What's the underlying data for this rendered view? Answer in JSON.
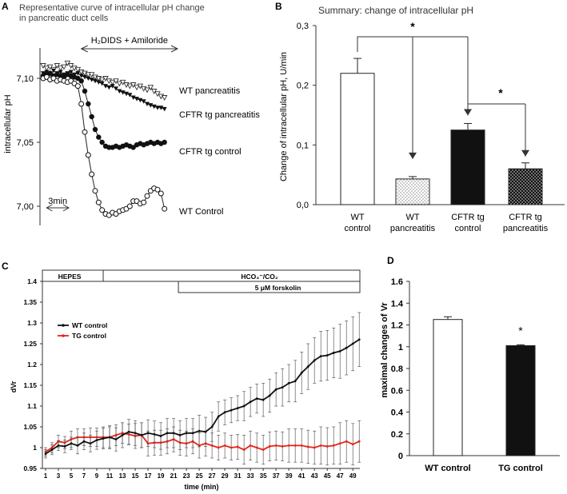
{
  "panel_labels": {
    "a": "A",
    "b": "B",
    "c": "C",
    "d": "D"
  },
  "chart_data": [
    {
      "panel": "A",
      "type": "line",
      "title": "Representative curve of intracellular pH change",
      "subtitle": "in pancreatic duct cells",
      "ylabel": "intracellular pH",
      "ylim": [
        6.985,
        7.125
      ],
      "yticks": [
        "7,10",
        "7,05",
        "7,00"
      ],
      "ytick_values": [
        7.1,
        7.05,
        7.0
      ],
      "treatment_label": "H₂DIDS + Amiloride",
      "time_scale_label": "3min",
      "xlim": [
        0,
        36
      ],
      "treatment_range": [
        11,
        36
      ],
      "scale_bar": [
        1,
        6
      ],
      "series": [
        {
          "name": "WT pancreatitis",
          "marker": "triangle-open",
          "x": [
            0,
            1,
            2,
            3,
            4,
            5,
            6,
            7,
            8,
            9,
            10,
            11,
            12,
            13,
            14,
            15,
            16,
            17,
            18,
            19,
            20,
            21,
            22,
            23,
            24,
            25,
            26,
            27,
            28,
            29,
            30,
            31,
            32,
            33,
            34,
            35
          ],
          "y": [
            7.11,
            7.108,
            7.109,
            7.107,
            7.11,
            7.108,
            7.109,
            7.112,
            7.11,
            7.108,
            7.107,
            7.105,
            7.104,
            7.103,
            7.103,
            7.101,
            7.1,
            7.099,
            7.1,
            7.098,
            7.097,
            7.098,
            7.096,
            7.097,
            7.095,
            7.094,
            7.095,
            7.093,
            7.094,
            7.092,
            7.091,
            7.093,
            7.09,
            7.088,
            7.086,
            7.085
          ]
        },
        {
          "name": "CFTR tg pancreatitis",
          "marker": "filled-small",
          "x": [
            0,
            1,
            2,
            3,
            4,
            5,
            6,
            7,
            8,
            9,
            10,
            11,
            12,
            13,
            14,
            15,
            16,
            17,
            18,
            19,
            20,
            21,
            22,
            23,
            24,
            25,
            26,
            27,
            28,
            29,
            30,
            31,
            32,
            33,
            34,
            35
          ],
          "y": [
            7.104,
            7.105,
            7.103,
            7.106,
            7.104,
            7.105,
            7.103,
            7.104,
            7.105,
            7.103,
            7.104,
            7.102,
            7.101,
            7.1,
            7.099,
            7.098,
            7.097,
            7.096,
            7.094,
            7.093,
            7.094,
            7.092,
            7.09,
            7.089,
            7.088,
            7.087,
            7.085,
            7.084,
            7.083,
            7.082,
            7.08,
            7.079,
            7.078,
            7.077,
            7.077,
            7.076
          ]
        },
        {
          "name": "CFTR tg control",
          "marker": "filled",
          "x": [
            0,
            1,
            2,
            3,
            4,
            5,
            6,
            7,
            8,
            9,
            10,
            11,
            12,
            13,
            14,
            15,
            16,
            17,
            18,
            19,
            20,
            21,
            22,
            23,
            24,
            25,
            26,
            27,
            28,
            29,
            30,
            31,
            32,
            33,
            34,
            35
          ],
          "y": [
            7.102,
            7.103,
            7.104,
            7.102,
            7.103,
            7.102,
            7.101,
            7.103,
            7.102,
            7.101,
            7.1,
            7.098,
            7.09,
            7.08,
            7.07,
            7.06,
            7.054,
            7.05,
            7.047,
            7.046,
            7.046,
            7.047,
            7.046,
            7.047,
            7.048,
            7.047,
            7.046,
            7.048,
            7.049,
            7.048,
            7.049,
            7.05,
            7.049,
            7.05,
            7.049,
            7.05
          ]
        },
        {
          "name": "WT Control",
          "marker": "circle-open",
          "x": [
            0,
            1,
            2,
            3,
            4,
            5,
            6,
            7,
            8,
            9,
            10,
            11,
            12,
            13,
            14,
            15,
            16,
            17,
            18,
            19,
            20,
            21,
            22,
            23,
            24,
            25,
            26,
            27,
            28,
            29,
            30,
            31,
            32,
            33,
            34,
            35
          ],
          "y": [
            7.1,
            7.101,
            7.099,
            7.1,
            7.098,
            7.099,
            7.098,
            7.097,
            7.098,
            7.096,
            7.094,
            7.08,
            7.058,
            7.04,
            7.025,
            7.012,
            7.003,
            6.997,
            6.994,
            6.993,
            6.995,
            6.994,
            6.996,
            6.997,
            6.998,
            7.0,
            7.004,
            7.004,
            7.002,
            7.003,
            7.008,
            7.012,
            7.014,
            7.013,
            7.01,
            6.998
          ]
        }
      ]
    },
    {
      "panel": "B",
      "type": "bar",
      "title": "Summary: change of intracellular pH",
      "ylabel": "Change of intracellular pH, U/min",
      "ylim": [
        0,
        0.3
      ],
      "yticks": [
        "0,0",
        "0,1",
        "0,2",
        "0,3"
      ],
      "categories": [
        "WT\ncontrol",
        "WT\npancreatitis",
        "CFTR tg\ncontrol",
        "CFTR tg\npancreatitis"
      ],
      "values": [
        0.22,
        0.043,
        0.125,
        0.06
      ],
      "errors": [
        0.025,
        0.004,
        0.011,
        0.01
      ],
      "fills": [
        "white",
        "dotted-light",
        "black",
        "dotted-dark"
      ],
      "significance": [
        "*",
        "*"
      ]
    },
    {
      "panel": "C",
      "type": "line",
      "ylabel": "dVr",
      "xlabel": "time (min)",
      "ylim": [
        0.95,
        1.4
      ],
      "yticks": [
        "0.95",
        "1",
        "1.05",
        "1.1",
        "1.15",
        "1.2",
        "1.25",
        "1.3",
        "1.35",
        "1.4"
      ],
      "ytick_values": [
        0.95,
        1.0,
        1.05,
        1.1,
        1.15,
        1.2,
        1.25,
        1.3,
        1.35,
        1.4
      ],
      "xticks": [
        "1",
        "3",
        "5",
        "7",
        "9",
        "11",
        "13",
        "15",
        "17",
        "19",
        "21",
        "23",
        "25",
        "27",
        "29",
        "31",
        "33",
        "35",
        "37",
        "39",
        "41",
        "43",
        "45",
        "47",
        "49"
      ],
      "xlim": [
        1,
        50
      ],
      "conditions": [
        {
          "label": "HEPES",
          "range": [
            1,
            10
          ]
        },
        {
          "label": "HCO₃⁻/CO₂",
          "range": [
            10,
            50
          ]
        },
        {
          "label": "5 μM forskolin",
          "range": [
            22,
            50
          ]
        }
      ],
      "series": [
        {
          "name": "WT control",
          "color": "#111111",
          "x": [
            1,
            2,
            3,
            4,
            5,
            6,
            7,
            8,
            9,
            10,
            11,
            12,
            13,
            14,
            15,
            16,
            17,
            18,
            19,
            20,
            21,
            22,
            23,
            24,
            25,
            26,
            27,
            28,
            29,
            30,
            31,
            32,
            33,
            34,
            35,
            36,
            37,
            38,
            39,
            40,
            41,
            42,
            43,
            44,
            45,
            46,
            47,
            48,
            49,
            50
          ],
          "y": [
            0.985,
            0.995,
            1.005,
            1.003,
            1.01,
            1.005,
            1.015,
            1.01,
            1.018,
            1.022,
            1.025,
            1.02,
            1.03,
            1.038,
            1.035,
            1.03,
            1.035,
            1.032,
            1.028,
            1.035,
            1.035,
            1.03,
            1.035,
            1.035,
            1.04,
            1.038,
            1.05,
            1.075,
            1.085,
            1.09,
            1.095,
            1.1,
            1.11,
            1.118,
            1.115,
            1.125,
            1.14,
            1.145,
            1.155,
            1.16,
            1.18,
            1.195,
            1.21,
            1.22,
            1.222,
            1.228,
            1.232,
            1.24,
            1.25,
            1.26
          ],
          "err": [
            0.01,
            0.012,
            0.012,
            0.015,
            0.015,
            0.02,
            0.02,
            0.02,
            0.022,
            0.025,
            0.028,
            0.028,
            0.03,
            0.03,
            0.03,
            0.03,
            0.032,
            0.032,
            0.032,
            0.035,
            0.035,
            0.035,
            0.035,
            0.035,
            0.038,
            0.035,
            0.035,
            0.035,
            0.03,
            0.03,
            0.03,
            0.035,
            0.035,
            0.035,
            0.04,
            0.04,
            0.04,
            0.045,
            0.045,
            0.05,
            0.05,
            0.055,
            0.055,
            0.06,
            0.06,
            0.06,
            0.065,
            0.065,
            0.065,
            0.065
          ]
        },
        {
          "name": "TG control",
          "color": "#e8231a",
          "x": [
            1,
            2,
            3,
            4,
            5,
            6,
            7,
            8,
            9,
            10,
            11,
            12,
            13,
            14,
            15,
            16,
            17,
            18,
            19,
            20,
            21,
            22,
            23,
            24,
            25,
            26,
            27,
            28,
            29,
            30,
            31,
            32,
            33,
            34,
            35,
            36,
            37,
            38,
            39,
            40,
            41,
            42,
            43,
            44,
            45,
            46,
            47,
            48,
            49,
            50
          ],
          "y": [
            0.99,
            1.0,
            1.015,
            1.012,
            1.02,
            1.025,
            1.025,
            1.025,
            1.025,
            1.025,
            1.025,
            1.03,
            1.035,
            1.032,
            1.028,
            1.03,
            1.01,
            1.012,
            1.012,
            1.015,
            1.02,
            1.012,
            1.01,
            1.015,
            1.005,
            1.01,
            1.005,
            1.0,
            1.005,
            1.0,
            1.002,
            0.995,
            1.005,
            1.0,
            0.995,
            1.003,
            1.005,
            1.003,
            1.005,
            1.005,
            1.005,
            1.002,
            1.0,
            1.005,
            1.003,
            1.005,
            1.01,
            1.015,
            1.008,
            1.015
          ],
          "err": [
            0.01,
            0.012,
            0.015,
            0.015,
            0.02,
            0.02,
            0.02,
            0.022,
            0.022,
            0.025,
            0.025,
            0.025,
            0.025,
            0.025,
            0.03,
            0.03,
            0.03,
            0.03,
            0.03,
            0.03,
            0.03,
            0.03,
            0.03,
            0.03,
            0.03,
            0.03,
            0.03,
            0.03,
            0.03,
            0.03,
            0.03,
            0.035,
            0.035,
            0.035,
            0.035,
            0.035,
            0.035,
            0.035,
            0.04,
            0.04,
            0.04,
            0.04,
            0.04,
            0.045,
            0.045,
            0.045,
            0.05,
            0.05,
            0.05,
            0.05
          ]
        }
      ]
    },
    {
      "panel": "D",
      "type": "bar",
      "ylabel": "maximal changes of Vr",
      "ylim": [
        0,
        1.6
      ],
      "yticks": [
        "0",
        "0.2",
        "0.4",
        "0.6",
        "0.8",
        "1",
        "1.2",
        "1.4",
        "1.6"
      ],
      "categories": [
        "WT control",
        "TG control"
      ],
      "values": [
        1.25,
        1.01
      ],
      "errors": [
        0.025,
        0.008
      ],
      "fills": [
        "white",
        "black"
      ],
      "significance": [
        "*"
      ]
    }
  ]
}
